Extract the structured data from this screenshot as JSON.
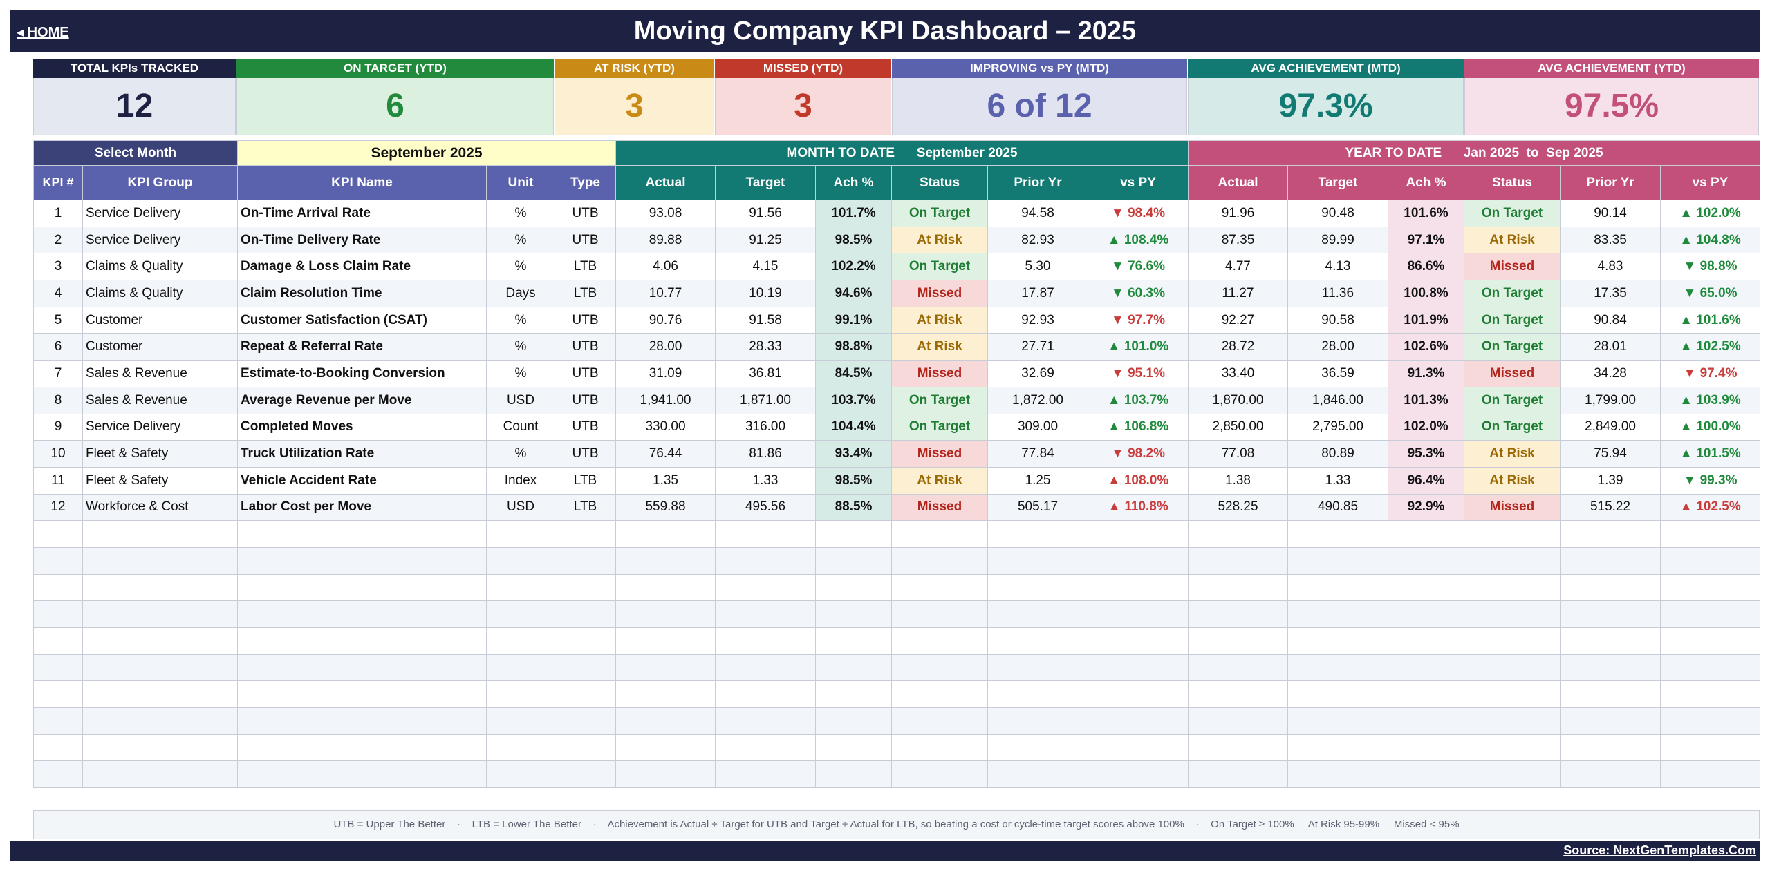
{
  "header": {
    "home_label": "◂  HOME",
    "title": "Moving Company KPI Dashboard   –   2025"
  },
  "cards": [
    {
      "label": "TOTAL KPIs TRACKED",
      "value": "12",
      "head_color": "#1d2142",
      "bg": "#e4e8f0",
      "fg": "#1d2142"
    },
    {
      "label": "ON TARGET (YTD)",
      "value": "6",
      "head_color": "#218a3c",
      "bg": "#dcf0e0",
      "fg": "#218a3c"
    },
    {
      "label": "AT RISK (YTD)",
      "value": "3",
      "head_color": "#c98b15",
      "bg": "#fdf0d2",
      "fg": "#c98b15"
    },
    {
      "label": "MISSED (YTD)",
      "value": "3",
      "head_color": "#c0392b",
      "bg": "#f8dada",
      "fg": "#c0392b"
    },
    {
      "label": "IMPROVING vs PY (MTD)",
      "value": "6 of 12",
      "head_color": "#5b62ad",
      "bg": "#e1e3f1",
      "fg": "#5b62ad"
    },
    {
      "label": "AVG ACHIEVEMENT (MTD)",
      "value": "97.3%",
      "head_color": "#127a72",
      "bg": "#d6ebe7",
      "fg": "#127a72"
    },
    {
      "label": "AVG ACHIEVEMENT (YTD)",
      "value": "97.5%",
      "head_color": "#c2507a",
      "bg": "#f6e1ea",
      "fg": "#c2507a"
    }
  ],
  "selector": {
    "label": "Select Month",
    "value": "September 2025",
    "mtd_title": "MONTH TO DATE      September 2025",
    "ytd_title": "YEAR TO DATE      Jan 2025  to  Sep 2025"
  },
  "columns": {
    "kpi_num": "KPI #",
    "group": "KPI Group",
    "name": "KPI Name",
    "unit": "Unit",
    "type": "Type",
    "actual": "Actual",
    "target": "Target",
    "ach": "Ach %",
    "status": "Status",
    "prior": "Prior Yr",
    "vspy": "vs PY"
  },
  "rows": [
    {
      "n": "1",
      "group": "Service Delivery",
      "name": "On-Time Arrival Rate",
      "unit": "%",
      "type": "UTB",
      "m": {
        "actual": "93.08",
        "target": "91.56",
        "ach": "101.7%",
        "status": "On Target",
        "prior": "94.58",
        "vspy": "▼ 98.4%",
        "dir": "down"
      },
      "y": {
        "actual": "91.96",
        "target": "90.48",
        "ach": "101.6%",
        "status": "On Target",
        "prior": "90.14",
        "vspy": "▲ 102.0%",
        "dir": "up"
      }
    },
    {
      "n": "2",
      "group": "Service Delivery",
      "name": "On-Time Delivery Rate",
      "unit": "%",
      "type": "UTB",
      "m": {
        "actual": "89.88",
        "target": "91.25",
        "ach": "98.5%",
        "status": "At Risk",
        "prior": "82.93",
        "vspy": "▲ 108.4%",
        "dir": "up"
      },
      "y": {
        "actual": "87.35",
        "target": "89.99",
        "ach": "97.1%",
        "status": "At Risk",
        "prior": "83.35",
        "vspy": "▲ 104.8%",
        "dir": "up"
      }
    },
    {
      "n": "3",
      "group": "Claims & Quality",
      "name": "Damage & Loss Claim Rate",
      "unit": "%",
      "type": "LTB",
      "m": {
        "actual": "4.06",
        "target": "4.15",
        "ach": "102.2%",
        "status": "On Target",
        "prior": "5.30",
        "vspy": "▼ 76.6%",
        "dir": "bad-down"
      },
      "y": {
        "actual": "4.77",
        "target": "4.13",
        "ach": "86.6%",
        "status": "Missed",
        "prior": "4.83",
        "vspy": "▼ 98.8%",
        "dir": "bad-down"
      }
    },
    {
      "n": "4",
      "group": "Claims & Quality",
      "name": "Claim Resolution Time",
      "unit": "Days",
      "type": "LTB",
      "m": {
        "actual": "10.77",
        "target": "10.19",
        "ach": "94.6%",
        "status": "Missed",
        "prior": "17.87",
        "vspy": "▼ 60.3%",
        "dir": "bad-down"
      },
      "y": {
        "actual": "11.27",
        "target": "11.36",
        "ach": "100.8%",
        "status": "On Target",
        "prior": "17.35",
        "vspy": "▼ 65.0%",
        "dir": "bad-down"
      }
    },
    {
      "n": "5",
      "group": "Customer",
      "name": "Customer Satisfaction (CSAT)",
      "unit": "%",
      "type": "UTB",
      "m": {
        "actual": "90.76",
        "target": "91.58",
        "ach": "99.1%",
        "status": "At Risk",
        "prior": "92.93",
        "vspy": "▼ 97.7%",
        "dir": "down"
      },
      "y": {
        "actual": "92.27",
        "target": "90.58",
        "ach": "101.9%",
        "status": "On Target",
        "prior": "90.84",
        "vspy": "▲ 101.6%",
        "dir": "up"
      }
    },
    {
      "n": "6",
      "group": "Customer",
      "name": "Repeat & Referral Rate",
      "unit": "%",
      "type": "UTB",
      "m": {
        "actual": "28.00",
        "target": "28.33",
        "ach": "98.8%",
        "status": "At Risk",
        "prior": "27.71",
        "vspy": "▲ 101.0%",
        "dir": "up"
      },
      "y": {
        "actual": "28.72",
        "target": "28.00",
        "ach": "102.6%",
        "status": "On Target",
        "prior": "28.01",
        "vspy": "▲ 102.5%",
        "dir": "up"
      }
    },
    {
      "n": "7",
      "group": "Sales & Revenue",
      "name": "Estimate-to-Booking Conversion",
      "unit": "%",
      "type": "UTB",
      "m": {
        "actual": "31.09",
        "target": "36.81",
        "ach": "84.5%",
        "status": "Missed",
        "prior": "32.69",
        "vspy": "▼ 95.1%",
        "dir": "down"
      },
      "y": {
        "actual": "33.40",
        "target": "36.59",
        "ach": "91.3%",
        "status": "Missed",
        "prior": "34.28",
        "vspy": "▼ 97.4%",
        "dir": "down"
      }
    },
    {
      "n": "8",
      "group": "Sales & Revenue",
      "name": "Average Revenue per Move",
      "unit": "USD",
      "type": "UTB",
      "m": {
        "actual": "1,941.00",
        "target": "1,871.00",
        "ach": "103.7%",
        "status": "On Target",
        "prior": "1,872.00",
        "vspy": "▲ 103.7%",
        "dir": "up"
      },
      "y": {
        "actual": "1,870.00",
        "target": "1,846.00",
        "ach": "101.3%",
        "status": "On Target",
        "prior": "1,799.00",
        "vspy": "▲ 103.9%",
        "dir": "up"
      }
    },
    {
      "n": "9",
      "group": "Service Delivery",
      "name": "Completed Moves",
      "unit": "Count",
      "type": "UTB",
      "m": {
        "actual": "330.00",
        "target": "316.00",
        "ach": "104.4%",
        "status": "On Target",
        "prior": "309.00",
        "vspy": "▲ 106.8%",
        "dir": "up"
      },
      "y": {
        "actual": "2,850.00",
        "target": "2,795.00",
        "ach": "102.0%",
        "status": "On Target",
        "prior": "2,849.00",
        "vspy": "▲ 100.0%",
        "dir": "up"
      }
    },
    {
      "n": "10",
      "group": "Fleet & Safety",
      "name": "Truck Utilization Rate",
      "unit": "%",
      "type": "UTB",
      "m": {
        "actual": "76.44",
        "target": "81.86",
        "ach": "93.4%",
        "status": "Missed",
        "prior": "77.84",
        "vspy": "▼ 98.2%",
        "dir": "down"
      },
      "y": {
        "actual": "77.08",
        "target": "80.89",
        "ach": "95.3%",
        "status": "At Risk",
        "prior": "75.94",
        "vspy": "▲ 101.5%",
        "dir": "up"
      }
    },
    {
      "n": "11",
      "group": "Fleet & Safety",
      "name": "Vehicle Accident Rate",
      "unit": "Index",
      "type": "LTB",
      "m": {
        "actual": "1.35",
        "target": "1.33",
        "ach": "98.5%",
        "status": "At Risk",
        "prior": "1.25",
        "vspy": "▲ 108.0%",
        "dir": "bad-up"
      },
      "y": {
        "actual": "1.38",
        "target": "1.33",
        "ach": "96.4%",
        "status": "At Risk",
        "prior": "1.39",
        "vspy": "▼ 99.3%",
        "dir": "bad-down"
      }
    },
    {
      "n": "12",
      "group": "Workforce & Cost",
      "name": "Labor Cost per Move",
      "unit": "USD",
      "type": "LTB",
      "m": {
        "actual": "559.88",
        "target": "495.56",
        "ach": "88.5%",
        "status": "Missed",
        "prior": "505.17",
        "vspy": "▲ 110.8%",
        "dir": "bad-up"
      },
      "y": {
        "actual": "528.25",
        "target": "490.85",
        "ach": "92.9%",
        "status": "Missed",
        "prior": "515.22",
        "vspy": "▲ 102.5%",
        "dir": "bad-up"
      }
    }
  ],
  "empty_rows": 10,
  "legend": "UTB = Upper The Better    ·    LTB = Lower The Better    ·    Achievement is Actual ÷ Target for UTB and Target ÷ Actual for LTB, so beating a cost or cycle-time target scores above 100%    ·    On Target ≥ 100%     At Risk 95-99%     Missed < 95%",
  "source": "Source: NextGenTemplates.Com",
  "colors": {
    "navy": "#1d2142",
    "mtd": "#127a72",
    "ytd": "#c2507a",
    "header": "#5b62ad"
  }
}
